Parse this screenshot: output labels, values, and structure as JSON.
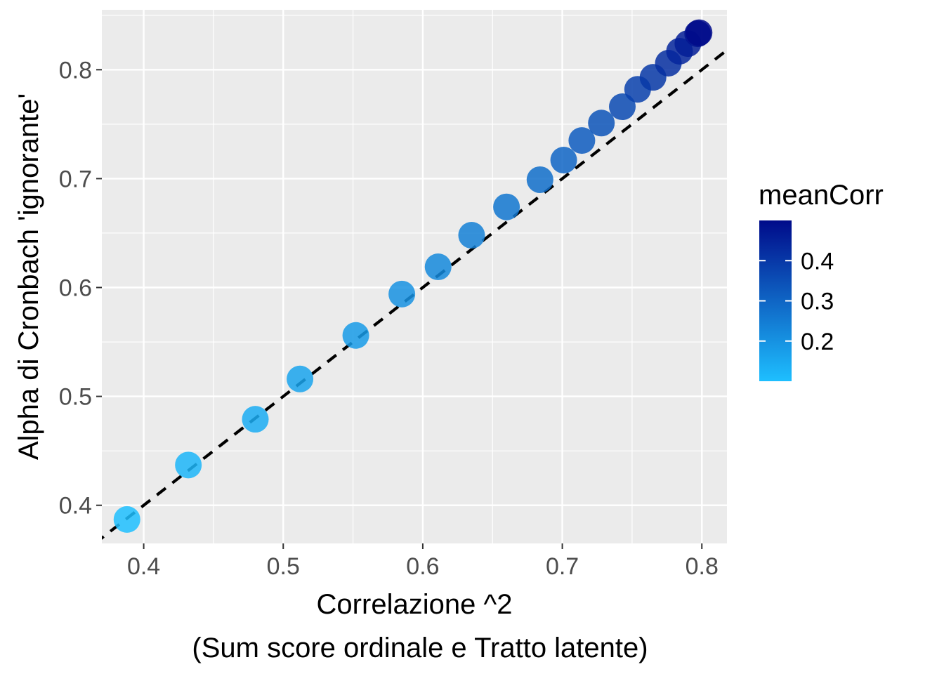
{
  "chart_data": {
    "type": "scatter",
    "title": "",
    "xlabel": "Correlazione ^2",
    "xlabel_line2": "(Sum score ordinale e Tratto latente)",
    "ylabel": "Alpha di Cronbach 'ignorante'",
    "xlim": [
      0.37,
      0.818
    ],
    "ylim": [
      0.365,
      0.855
    ],
    "x_ticks": [
      0.4,
      0.5,
      0.6,
      0.7,
      0.8
    ],
    "x_tick_labels": [
      "0.4",
      "0.5",
      "0.6",
      "0.7",
      "0.8"
    ],
    "y_ticks": [
      0.4,
      0.5,
      0.6,
      0.7,
      0.8
    ],
    "y_tick_labels": [
      "0.4",
      "0.5",
      "0.6",
      "0.7",
      "0.8"
    ],
    "grid": true,
    "reference_line": {
      "type": "identity",
      "style": "dashed",
      "color": "#000000"
    },
    "color_scale": {
      "name": "meanCorr",
      "low_color": "#1ebfff",
      "high_color": "#000b8a",
      "range": [
        0.1,
        0.5
      ],
      "ticks": [
        0.2,
        0.3,
        0.4
      ],
      "tick_labels": [
        "0.2",
        "0.3",
        "0.4"
      ]
    },
    "legend_position": "right",
    "points": [
      {
        "x": 0.388,
        "y": 0.387,
        "meanCorr": 0.1
      },
      {
        "x": 0.432,
        "y": 0.437,
        "meanCorr": 0.12
      },
      {
        "x": 0.48,
        "y": 0.479,
        "meanCorr": 0.14
      },
      {
        "x": 0.512,
        "y": 0.516,
        "meanCorr": 0.16
      },
      {
        "x": 0.552,
        "y": 0.556,
        "meanCorr": 0.18
      },
      {
        "x": 0.585,
        "y": 0.594,
        "meanCorr": 0.2
      },
      {
        "x": 0.611,
        "y": 0.619,
        "meanCorr": 0.22
      },
      {
        "x": 0.635,
        "y": 0.648,
        "meanCorr": 0.24
      },
      {
        "x": 0.66,
        "y": 0.674,
        "meanCorr": 0.26
      },
      {
        "x": 0.684,
        "y": 0.699,
        "meanCorr": 0.28
      },
      {
        "x": 0.701,
        "y": 0.717,
        "meanCorr": 0.3
      },
      {
        "x": 0.714,
        "y": 0.735,
        "meanCorr": 0.32
      },
      {
        "x": 0.728,
        "y": 0.751,
        "meanCorr": 0.34
      },
      {
        "x": 0.743,
        "y": 0.766,
        "meanCorr": 0.36
      },
      {
        "x": 0.754,
        "y": 0.782,
        "meanCorr": 0.38
      },
      {
        "x": 0.765,
        "y": 0.793,
        "meanCorr": 0.4
      },
      {
        "x": 0.776,
        "y": 0.806,
        "meanCorr": 0.42
      },
      {
        "x": 0.784,
        "y": 0.817,
        "meanCorr": 0.44
      },
      {
        "x": 0.79,
        "y": 0.824,
        "meanCorr": 0.46
      },
      {
        "x": 0.797,
        "y": 0.833,
        "meanCorr": 0.48
      },
      {
        "x": 0.798,
        "y": 0.834,
        "meanCorr": 0.5
      }
    ]
  }
}
